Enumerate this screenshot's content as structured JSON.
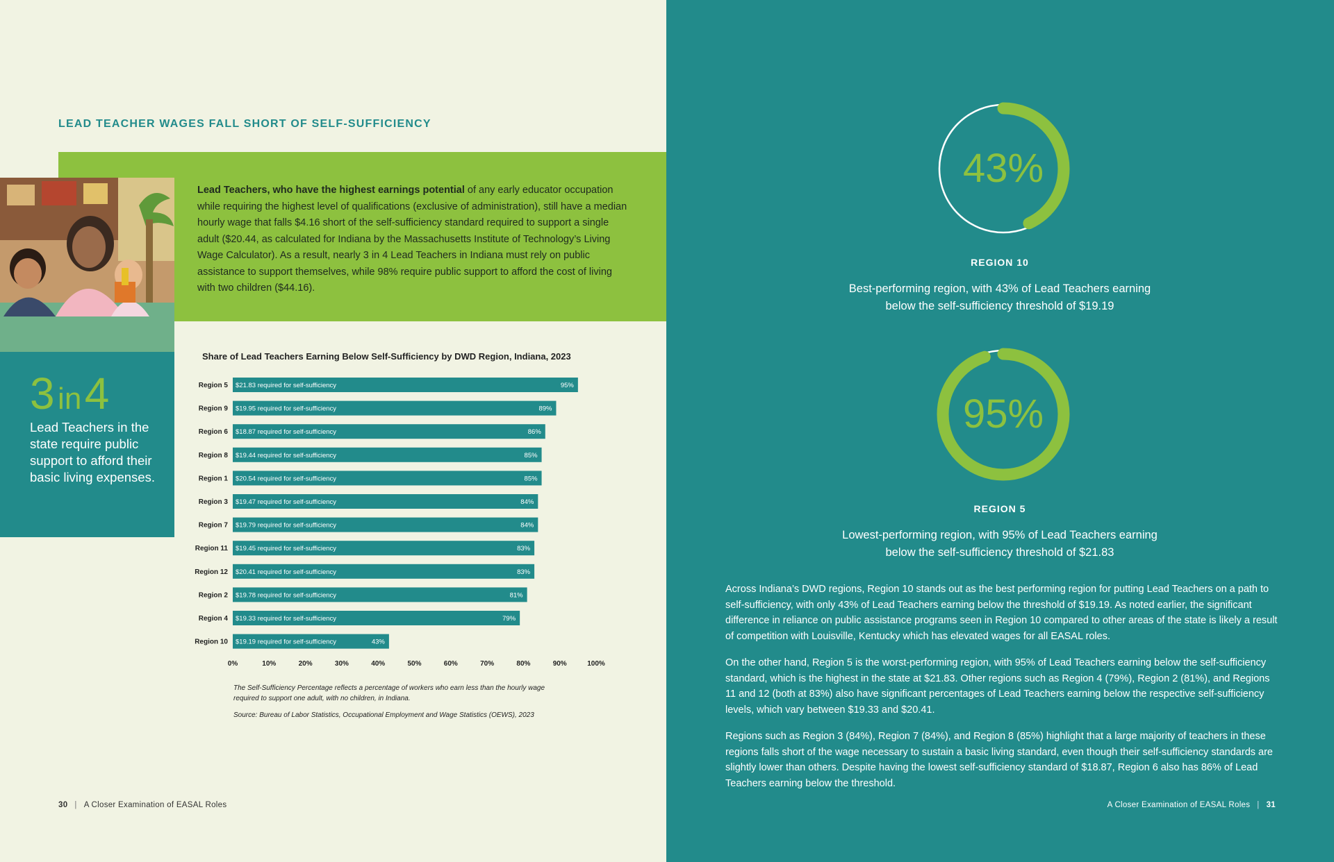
{
  "left_page": {
    "section_title": "LEAD TEACHER WAGES FALL SHORT OF SELF-SUFFICIENCY",
    "intro_bold": "Lead Teachers, who have the highest earnings potential",
    "intro_rest": " of any early educator occupation while requiring the highest level of qualifications (exclusive of administration), still have a median hourly wage that falls $4.16 short of the self-sufficiency standard required to support a single adult ($20.44, as calculated for Indiana by the Massachusetts Institute of Technology’s Living Wage Calculator). As a result, nearly 3 in 4 Lead Teachers in Indiana must rely on public assistance to support themselves, while 98% require public support to afford the cost of living with two children ($44.16).",
    "stat": {
      "num1": "3",
      "in_word": "in",
      "num2": "4",
      "text": "Lead Teachers in the state require public support to afford their basic living expenses."
    },
    "chart_title": "Share of Lead Teachers Earning Below Self-Sufficiency by DWD Region, Indiana, 2023",
    "chart_note": "The Self-Sufficiency Percentage reflects a percentage of workers who earn less than the hourly wage required to support one adult, with no children, in Indiana.",
    "chart_source": "Source: Bureau of Labor Statistics, Occupational Employment and Wage Statistics (OEWS), 2023",
    "footer": {
      "page_number": "30",
      "title": "A Closer Examination of EASAL Roles"
    }
  },
  "chart_data": {
    "type": "bar",
    "orientation": "horizontal",
    "title": "Share of Lead Teachers Earning Below Self-Sufficiency by DWD Region, Indiana, 2023",
    "categories": [
      "Region 5",
      "Region 9",
      "Region 6",
      "Region 8",
      "Region 1",
      "Region 3",
      "Region 7",
      "Region 11",
      "Region 12",
      "Region 2",
      "Region 4",
      "Region 10"
    ],
    "values": [
      95,
      89,
      86,
      85,
      85,
      84,
      84,
      83,
      83,
      81,
      79,
      43
    ],
    "value_labels": [
      "95%",
      "89%",
      "86%",
      "85%",
      "85%",
      "84%",
      "84%",
      "83%",
      "83%",
      "81%",
      "79%",
      "43%"
    ],
    "bar_text": [
      "$21.83 required for self-sufficiency",
      "$19.95 required for self-sufficiency",
      "$18.87 required for self-sufficiency",
      "$19.44 required for self-sufficiency",
      "$20.54 required for self-sufficiency",
      "$19.47 required for self-sufficiency",
      "$19.79 required for self-sufficiency",
      "$19.45 required for self-sufficiency",
      "$20.41 required for self-sufficiency",
      "$19.78 required for self-sufficiency",
      "$19.33 required for self-sufficiency",
      "$19.19 required for self-sufficiency"
    ],
    "x_ticks": [
      "0%",
      "10%",
      "20%",
      "30%",
      "40%",
      "50%",
      "60%",
      "70%",
      "80%",
      "90%",
      "100%"
    ],
    "xlim": [
      0,
      100
    ],
    "bar_color": "#228b8b",
    "grid": false
  },
  "right_page": {
    "donut1": {
      "value": 43,
      "label": "43%",
      "region": "REGION 10",
      "desc_line1": "Best-performing region, with 43% of Lead Teachers earning",
      "desc_line2": "below the self-sufficiency threshold of $19.19"
    },
    "donut2": {
      "value": 95,
      "label": "95%",
      "region": "REGION 5",
      "desc_line1": "Lowest-performing region, with 95% of Lead Teachers earning",
      "desc_line2": "below the self-sufficiency threshold of $21.83"
    },
    "para1": "Across Indiana’s DWD regions, Region 10 stands out as the best performing region for putting Lead Teachers on a path to self-sufficiency, with only 43% of Lead Teachers earning below the threshold of $19.19. As noted earlier, the significant difference in reliance on public assistance programs seen in Region 10 compared to other areas of the state is likely a result of competition with Louisville, Kentucky which has elevated wages for all EASAL roles.",
    "para2": "On the other hand, Region 5 is the worst-performing region, with 95% of Lead Teachers earning below the self-sufficiency standard, which is the highest in the state at $21.83. Other regions such as Region 4 (79%), Region 2 (81%), and Regions 11 and 12 (both at 83%) also have significant percentages of Lead Teachers earning below the respective self-sufficiency levels, which vary between $19.33 and $20.41.",
    "para3": "Regions such as Region 3 (84%), Region 7 (84%), and Region 8 (85%) highlight that a large majority of teachers in these regions falls short of the wage necessary to sustain a basic living standard, even though their self-sufficiency standards are slightly lower than others. Despite having the lowest self-sufficiency standard of $18.87, Region 6 also has 86% of Lead Teachers earning below the threshold.",
    "footer": {
      "page_number": "31",
      "title": "A Closer Examination of EASAL Roles"
    }
  },
  "colors": {
    "teal": "#228b8b",
    "green": "#8dc13f",
    "cream": "#f1f3e3",
    "white": "#ffffff"
  }
}
